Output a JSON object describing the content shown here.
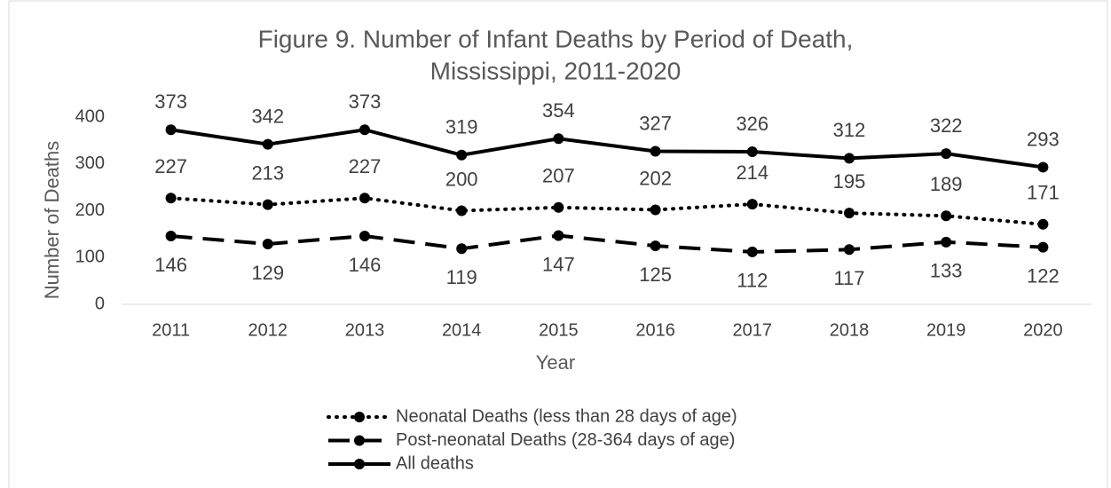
{
  "chart_data": {
    "type": "line",
    "title": [
      "Figure 9. Number of Infant Deaths by Period of Death,",
      "Mississippi, 2011-2020"
    ],
    "x_label": "Year",
    "y_label": "Number of Deaths",
    "categories": [
      "2011",
      "2012",
      "2013",
      "2014",
      "2015",
      "2016",
      "2017",
      "2018",
      "2019",
      "2020"
    ],
    "series": [
      {
        "name": "Neonatal Deaths (less than 28 days of age)",
        "color": "#000000",
        "style": "dotted",
        "values": [
          227,
          213,
          227,
          200,
          207,
          202,
          214,
          195,
          189,
          171
        ]
      },
      {
        "name": "Post-neonatal Deaths (28-364 days of age)",
        "color": "#000000",
        "style": "dashed",
        "values": [
          146,
          129,
          146,
          119,
          147,
          125,
          112,
          117,
          133,
          122
        ]
      },
      {
        "name": "All deaths",
        "color": "#000000",
        "style": "solid",
        "values": [
          373,
          342,
          373,
          319,
          354,
          327,
          326,
          312,
          322,
          293
        ]
      }
    ],
    "ylim": [
      0,
      400
    ],
    "yticks": [
      0,
      100,
      200,
      300,
      400
    ],
    "grid": false,
    "legend": "bottom"
  }
}
